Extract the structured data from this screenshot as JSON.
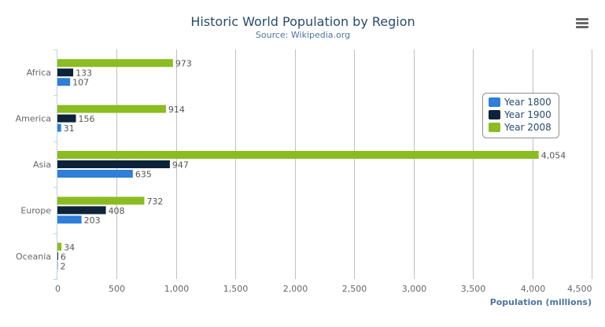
{
  "chart_data": {
    "type": "bar",
    "orientation": "horizontal",
    "title": "Historic World Population by Region",
    "subtitle": "Source: Wikipedia.org",
    "xlabel": "",
    "ylabel": "Population (millions)",
    "categories": [
      "Africa",
      "America",
      "Asia",
      "Europe",
      "Oceania"
    ],
    "series": [
      {
        "name": "Year 1800",
        "color": "#2f7ed8",
        "values": [
          107,
          31,
          635,
          203,
          2
        ]
      },
      {
        "name": "Year 1900",
        "color": "#0d233a",
        "values": [
          133,
          156,
          947,
          408,
          6
        ]
      },
      {
        "name": "Year 2008",
        "color": "#8bbc21",
        "values": [
          973,
          914,
          4054,
          732,
          34
        ]
      }
    ],
    "value_ticks": [
      "0",
      "500",
      "1,000",
      "1,500",
      "2,000",
      "2,500",
      "3,000",
      "3,500",
      "4,000",
      "4,500"
    ],
    "ylim": [
      0,
      4500
    ],
    "grid": true,
    "data_labels": true,
    "legend_position": "right, floating"
  },
  "menu_icon": "hamburger-menu-icon"
}
